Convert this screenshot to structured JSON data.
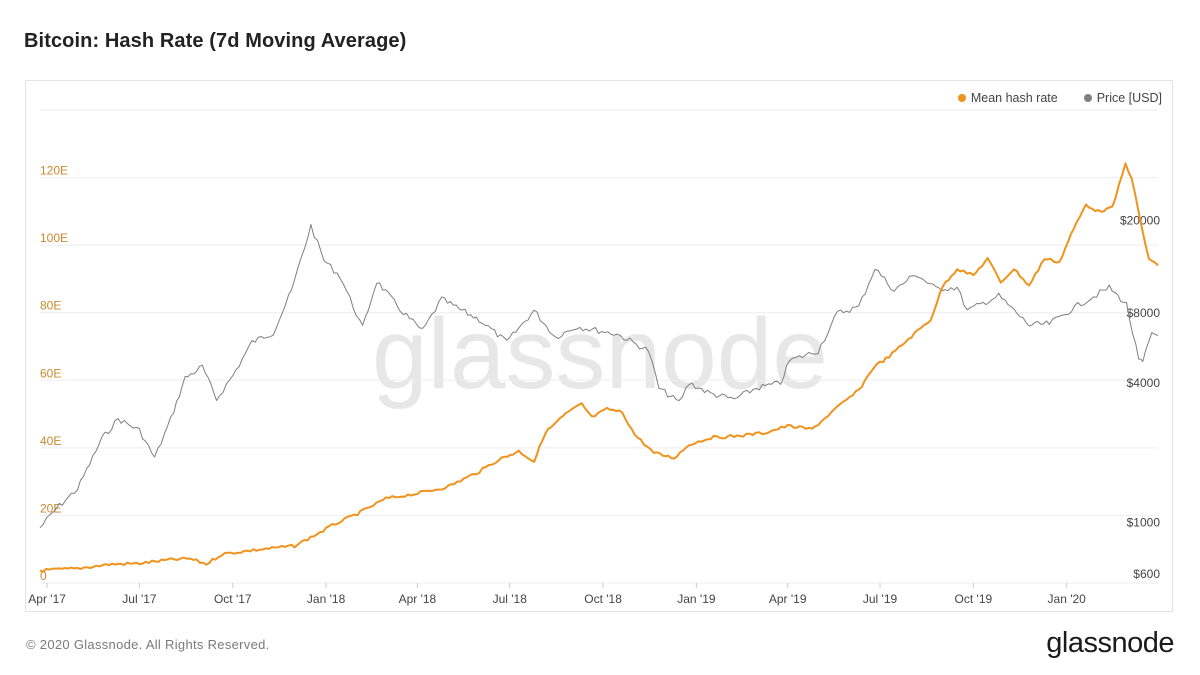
{
  "title": "Bitcoin: Hash Rate (7d Moving Average)",
  "footer": {
    "copyright": "© 2020 Glassnode. All Rights Reserved.",
    "brand": "glassnode"
  },
  "watermark": "glassnode",
  "colors": {
    "hash_rate": "#f0931d",
    "price": "#7f7f7f",
    "grid": "#eeeeee",
    "axis_left_text": "#c98a2e",
    "axis_right_text": "#444444"
  },
  "chart_data": {
    "type": "line",
    "title": "Bitcoin: Hash Rate (7d Moving Average)",
    "x_range": [
      "2017-03-25",
      "2020-03-31"
    ],
    "x_ticks": [
      {
        "date": "2017-04-01",
        "label": "Apr '17"
      },
      {
        "date": "2017-07-01",
        "label": "Jul '17"
      },
      {
        "date": "2017-10-01",
        "label": "Oct '17"
      },
      {
        "date": "2018-01-01",
        "label": "Jan '18"
      },
      {
        "date": "2018-04-01",
        "label": "Apr '18"
      },
      {
        "date": "2018-07-01",
        "label": "Jul '18"
      },
      {
        "date": "2018-10-01",
        "label": "Oct '18"
      },
      {
        "date": "2019-01-01",
        "label": "Jan '19"
      },
      {
        "date": "2019-04-01",
        "label": "Apr '19"
      },
      {
        "date": "2019-07-01",
        "label": "Jul '19"
      },
      {
        "date": "2019-10-01",
        "label": "Oct '19"
      },
      {
        "date": "2020-01-01",
        "label": "Jan '20"
      }
    ],
    "y_left": {
      "unit": "EH/s",
      "range": [
        0,
        140
      ],
      "ticks": [
        {
          "value": 0,
          "label": "0"
        },
        {
          "value": 20,
          "label": "20E"
        },
        {
          "value": 40,
          "label": "40E"
        },
        {
          "value": 60,
          "label": "60E"
        },
        {
          "value": 80,
          "label": "80E"
        },
        {
          "value": 100,
          "label": "100E"
        },
        {
          "value": 120,
          "label": "120E"
        }
      ]
    },
    "y_right": {
      "scale": "log",
      "unit": "USD",
      "range": [
        550,
        60000
      ],
      "ticks": [
        {
          "value": 600,
          "label": "$600"
        },
        {
          "value": 1000,
          "label": "$1000"
        },
        {
          "value": 4000,
          "label": "$4000"
        },
        {
          "value": 8000,
          "label": "$8000"
        },
        {
          "value": 20000,
          "label": "$20000"
        }
      ]
    },
    "legend": "top-right",
    "series": [
      {
        "name": "Mean hash rate",
        "axis": "left",
        "points": [
          [
            "2017-03-25",
            3.7
          ],
          [
            "2017-05-01",
            4.3
          ],
          [
            "2017-06-01",
            5.5
          ],
          [
            "2017-07-01",
            5.8
          ],
          [
            "2017-08-01",
            6.9
          ],
          [
            "2017-08-20",
            7.2
          ],
          [
            "2017-09-05",
            5.6
          ],
          [
            "2017-09-20",
            8.5
          ],
          [
            "2017-10-15",
            9.5
          ],
          [
            "2017-11-15",
            10.5
          ],
          [
            "2017-12-01",
            11.0
          ],
          [
            "2017-12-20",
            14.0
          ],
          [
            "2018-01-10",
            17.5
          ],
          [
            "2018-02-01",
            20.5
          ],
          [
            "2018-03-01",
            25.0
          ],
          [
            "2018-04-01",
            26.5
          ],
          [
            "2018-05-01",
            28.5
          ],
          [
            "2018-06-01",
            33.0
          ],
          [
            "2018-06-20",
            36.5
          ],
          [
            "2018-07-10",
            39.0
          ],
          [
            "2018-07-25",
            36.0
          ],
          [
            "2018-08-05",
            44.5
          ],
          [
            "2018-08-25",
            50.0
          ],
          [
            "2018-09-10",
            53.0
          ],
          [
            "2018-09-20",
            49.0
          ],
          [
            "2018-10-05",
            51.5
          ],
          [
            "2018-10-20",
            50.5
          ],
          [
            "2018-11-01",
            44.0
          ],
          [
            "2018-11-20",
            38.5
          ],
          [
            "2018-12-10",
            37.0
          ],
          [
            "2018-12-25",
            41.0
          ],
          [
            "2019-01-15",
            43.0
          ],
          [
            "2019-02-10",
            43.5
          ],
          [
            "2019-03-10",
            44.5
          ],
          [
            "2019-04-01",
            46.5
          ],
          [
            "2019-04-25",
            45.5
          ],
          [
            "2019-05-20",
            52.0
          ],
          [
            "2019-06-10",
            57.0
          ],
          [
            "2019-06-25",
            64.0
          ],
          [
            "2019-07-10",
            67.0
          ],
          [
            "2019-08-01",
            73.0
          ],
          [
            "2019-08-20",
            78.0
          ],
          [
            "2019-09-01",
            88.0
          ],
          [
            "2019-09-15",
            93.0
          ],
          [
            "2019-10-01",
            91.0
          ],
          [
            "2019-10-15",
            96.0
          ],
          [
            "2019-10-28",
            89.0
          ],
          [
            "2019-11-10",
            93.0
          ],
          [
            "2019-11-25",
            88.0
          ],
          [
            "2019-12-10",
            96.0
          ],
          [
            "2019-12-25",
            95.0
          ],
          [
            "2020-01-05",
            103.0
          ],
          [
            "2020-01-20",
            112.0
          ],
          [
            "2020-02-01",
            110.0
          ],
          [
            "2020-02-15",
            111.0
          ],
          [
            "2020-02-28",
            124.0
          ],
          [
            "2020-03-05",
            120.0
          ],
          [
            "2020-03-15",
            105.0
          ],
          [
            "2020-03-22",
            96.0
          ],
          [
            "2020-03-31",
            94.0
          ]
        ]
      },
      {
        "name": "Price [USD]",
        "axis": "right",
        "points": [
          [
            "2017-03-25",
            950
          ],
          [
            "2017-04-10",
            1150
          ],
          [
            "2017-05-01",
            1400
          ],
          [
            "2017-05-25",
            2300
          ],
          [
            "2017-06-10",
            2800
          ],
          [
            "2017-07-01",
            2500
          ],
          [
            "2017-07-16",
            1900
          ],
          [
            "2017-08-01",
            2800
          ],
          [
            "2017-08-15",
            4200
          ],
          [
            "2017-09-01",
            4700
          ],
          [
            "2017-09-15",
            3400
          ],
          [
            "2017-10-01",
            4300
          ],
          [
            "2017-10-20",
            6000
          ],
          [
            "2017-11-10",
            6600
          ],
          [
            "2017-11-28",
            10000
          ],
          [
            "2017-12-17",
            19000
          ],
          [
            "2017-12-30",
            13500
          ],
          [
            "2018-01-15",
            11500
          ],
          [
            "2018-02-06",
            6900
          ],
          [
            "2018-02-20",
            11000
          ],
          [
            "2018-03-15",
            8300
          ],
          [
            "2018-04-06",
            6700
          ],
          [
            "2018-04-25",
            9200
          ],
          [
            "2018-05-15",
            8200
          ],
          [
            "2018-06-01",
            7500
          ],
          [
            "2018-06-28",
            6000
          ],
          [
            "2018-07-25",
            8200
          ],
          [
            "2018-08-15",
            6300
          ],
          [
            "2018-09-05",
            7000
          ],
          [
            "2018-10-15",
            6500
          ],
          [
            "2018-11-15",
            5500
          ],
          [
            "2018-11-25",
            3800
          ],
          [
            "2018-12-15",
            3300
          ],
          [
            "2018-12-25",
            4000
          ],
          [
            "2019-01-15",
            3600
          ],
          [
            "2019-02-07",
            3400
          ],
          [
            "2019-03-01",
            3800
          ],
          [
            "2019-03-25",
            4000
          ],
          [
            "2019-04-03",
            5000
          ],
          [
            "2019-05-01",
            5500
          ],
          [
            "2019-05-20",
            8000
          ],
          [
            "2019-06-10",
            8500
          ],
          [
            "2019-06-26",
            12500
          ],
          [
            "2019-07-15",
            10000
          ],
          [
            "2019-08-05",
            11800
          ],
          [
            "2019-08-25",
            10200
          ],
          [
            "2019-09-15",
            10300
          ],
          [
            "2019-09-25",
            8200
          ],
          [
            "2019-10-26",
            9500
          ],
          [
            "2019-11-25",
            7100
          ],
          [
            "2019-12-15",
            7200
          ],
          [
            "2020-01-15",
            8800
          ],
          [
            "2020-02-12",
            10300
          ],
          [
            "2020-02-29",
            8700
          ],
          [
            "2020-03-12",
            5000
          ],
          [
            "2020-03-16",
            4900
          ],
          [
            "2020-03-25",
            6600
          ],
          [
            "2020-03-31",
            6400
          ]
        ]
      }
    ]
  }
}
